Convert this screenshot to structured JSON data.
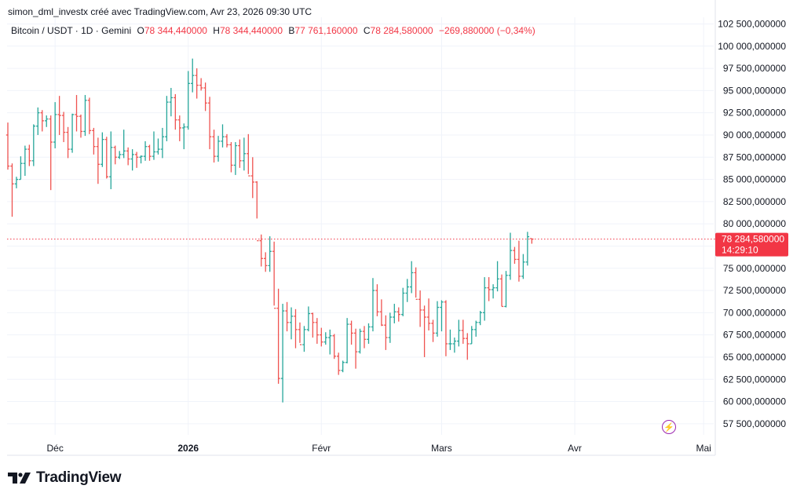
{
  "header": {
    "text": "simon_dml_investx créé avec TradingView.com, Avr 23, 2026 09:30 UTC"
  },
  "legend": {
    "symbol": "Bitcoin / USDT · 1D · Gemini",
    "o_label": "O",
    "o_value": "78 344,440000",
    "h_label": "H",
    "h_value": "78 344,440000",
    "b_label": "B",
    "b_value": "77 761,160000",
    "c_label": "C",
    "c_value": "78 284,580000",
    "change": "−269,880000 (−0,34%)"
  },
  "price_tag": {
    "value": "78 284,580000",
    "countdown": "14:29:10"
  },
  "brand": {
    "logo_text": "TradingView"
  },
  "colors": {
    "up": "#26a69a",
    "down": "#ef5350",
    "last_price": "#f23645",
    "grid": "#f0f3fa"
  },
  "chart_data": {
    "type": "ohlc",
    "title": "",
    "xlabel": "",
    "ylabel": "",
    "ylim": [
      56250,
      103250
    ],
    "y_ticks": [
      57500,
      60000,
      62500,
      65000,
      67500,
      70000,
      72500,
      75000,
      77500,
      80000,
      82500,
      85000,
      87500,
      90000,
      92500,
      95000,
      97500,
      100000,
      102500
    ],
    "y_tick_labels": [
      "57 500,000000",
      "60 000,000000",
      "62 500,000000",
      "65 000,000000",
      "67 500,000000",
      "70 000,000000",
      "72 500,000000",
      "75 000,000000",
      "77 500,000000",
      "80 000,000000",
      "82 500,000000",
      "85 000,000000",
      "87 500,000000",
      "90 000,000000",
      "92 500,000000",
      "95 000,000000",
      "97 500,000000",
      "100 000,000000",
      "102 500,000000"
    ],
    "x_ticks": [
      {
        "label": "Déc",
        "bar": 11,
        "bold": false
      },
      {
        "label": "2026",
        "bar": 42,
        "bold": true
      },
      {
        "label": "Févr",
        "bar": 73,
        "bold": false
      },
      {
        "label": "Mars",
        "bar": 101,
        "bold": false
      },
      {
        "label": "Avr",
        "bar": 132,
        "bold": false
      },
      {
        "label": "Mai",
        "bar": 162,
        "bold": false
      }
    ],
    "first_bar_date": "2025-11-20",
    "last_price": 78284.58,
    "grid": true,
    "bars": [
      [
        90000,
        91400,
        86100,
        86500
      ],
      [
        86500,
        86800,
        80800,
        84500
      ],
      [
        84500,
        85300,
        84000,
        85000
      ],
      [
        85000,
        87600,
        85000,
        86800
      ],
      [
        86800,
        88800,
        85400,
        88400
      ],
      [
        88400,
        88900,
        86500,
        87100
      ],
      [
        87100,
        91200,
        86500,
        91000
      ],
      [
        91000,
        93100,
        90000,
        92500
      ],
      [
        92500,
        92800,
        90400,
        91600
      ],
      [
        91600,
        92200,
        90900,
        91800
      ],
      [
        91800,
        92200,
        83800,
        89200
      ],
      [
        89200,
        93700,
        88500,
        92300
      ],
      [
        92300,
        94400,
        90000,
        92200
      ],
      [
        92200,
        92600,
        89200,
        90300
      ],
      [
        90300,
        90900,
        87400,
        88400
      ],
      [
        88400,
        92400,
        88000,
        92300
      ],
      [
        92300,
        94500,
        90400,
        92100
      ],
      [
        92100,
        92300,
        89700,
        90400
      ],
      [
        90400,
        94500,
        89900,
        93900
      ],
      [
        93900,
        94200,
        90100,
        90500
      ],
      [
        90500,
        90800,
        87800,
        88700
      ],
      [
        88700,
        89700,
        84500,
        86700
      ],
      [
        86700,
        90300,
        86400,
        89500
      ],
      [
        89500,
        89800,
        85100,
        85300
      ],
      [
        85300,
        90400,
        83900,
        88600
      ],
      [
        88600,
        88800,
        86700,
        87500
      ],
      [
        87500,
        88200,
        87300,
        87800
      ],
      [
        87800,
        90600,
        87400,
        88200
      ],
      [
        88200,
        88600,
        86600,
        87300
      ],
      [
        87300,
        88400,
        86000,
        87800
      ],
      [
        87800,
        88100,
        86300,
        87500
      ],
      [
        87500,
        87700,
        86800,
        87600
      ],
      [
        87600,
        89300,
        87100,
        88700
      ],
      [
        88700,
        88900,
        87100,
        87600
      ],
      [
        87600,
        90400,
        87200,
        88100
      ],
      [
        88100,
        89600,
        87800,
        88400
      ],
      [
        88400,
        90800,
        87400,
        89800
      ],
      [
        89800,
        94400,
        89300,
        93700
      ],
      [
        93700,
        95300,
        92100,
        94200
      ],
      [
        94200,
        94600,
        90600,
        91700
      ],
      [
        91700,
        92200,
        89300,
        90800
      ],
      [
        90800,
        91300,
        88400,
        90900
      ],
      [
        90900,
        97200,
        90600,
        95800
      ],
      [
        95800,
        98600,
        94800,
        96700
      ],
      [
        96700,
        97500,
        94100,
        95600
      ],
      [
        95600,
        96400,
        95000,
        95300
      ],
      [
        95300,
        95900,
        92700,
        93600
      ],
      [
        93600,
        94300,
        88400,
        89800
      ],
      [
        89800,
        90600,
        86900,
        87600
      ],
      [
        87600,
        89900,
        87000,
        89300
      ],
      [
        89300,
        91200,
        88600,
        89800
      ],
      [
        89800,
        90100,
        88600,
        88900
      ],
      [
        88900,
        89200,
        85800,
        86600
      ],
      [
        86600,
        89200,
        85500,
        88800
      ],
      [
        88800,
        89500,
        86300,
        87100
      ],
      [
        87100,
        89700,
        86000,
        87900
      ],
      [
        87900,
        90100,
        85600,
        85400
      ],
      [
        85400,
        87500,
        82900,
        84700
      ],
      [
        84700,
        84800,
        80600,
        78100
      ],
      [
        78100,
        78800,
        75200,
        76100
      ],
      [
        76100,
        76800,
        74600,
        75300
      ],
      [
        75300,
        78600,
        74600,
        76900
      ],
      [
        76900,
        78000,
        70800,
        70500
      ],
      [
        70500,
        72700,
        62000,
        62600
      ],
      [
        62600,
        71000,
        59900,
        70200
      ],
      [
        70200,
        71200,
        67900,
        68900
      ],
      [
        68900,
        70600,
        67000,
        69600
      ],
      [
        69600,
        70400,
        66000,
        68100
      ],
      [
        68100,
        68900,
        66600,
        66400
      ],
      [
        66400,
        68500,
        65600,
        68100
      ],
      [
        68100,
        70700,
        67900,
        69900
      ],
      [
        69900,
        70000,
        67200,
        68900
      ],
      [
        68900,
        69400,
        66500,
        67500
      ],
      [
        67500,
        68300,
        66200,
        66700
      ],
      [
        66700,
        67800,
        66400,
        67200
      ],
      [
        67200,
        68100,
        65300,
        67400
      ],
      [
        67400,
        67600,
        64800,
        65100
      ],
      [
        65100,
        65500,
        63000,
        63500
      ],
      [
        63500,
        64600,
        63300,
        64400
      ],
      [
        64400,
        69400,
        64300,
        68700
      ],
      [
        68700,
        69100,
        66400,
        67700
      ],
      [
        67700,
        68200,
        63700,
        65600
      ],
      [
        65600,
        68200,
        65400,
        67900
      ],
      [
        67900,
        68500,
        66000,
        67000
      ],
      [
        67000,
        68800,
        66500,
        68400
      ],
      [
        68400,
        73900,
        67900,
        72500
      ],
      [
        72500,
        73200,
        69600,
        70100
      ],
      [
        70100,
        71500,
        68500,
        68600
      ],
      [
        68600,
        69700,
        65800,
        67200
      ],
      [
        67200,
        70000,
        66600,
        69500
      ],
      [
        69500,
        71000,
        68800,
        70100
      ],
      [
        70100,
        70600,
        69000,
        69800
      ],
      [
        69800,
        72800,
        69600,
        72200
      ],
      [
        72200,
        73800,
        71200,
        72900
      ],
      [
        72900,
        75800,
        72200,
        74500
      ],
      [
        74500,
        75100,
        71700,
        71500
      ],
      [
        71500,
        72500,
        68400,
        70300
      ],
      [
        70300,
        70800,
        65000,
        69500
      ],
      [
        69500,
        71600,
        68000,
        68800
      ],
      [
        68800,
        69200,
        66700,
        67700
      ],
      [
        67700,
        71300,
        67300,
        70600
      ],
      [
        70600,
        71400,
        67900,
        71200
      ],
      [
        71200,
        71400,
        65100,
        66500
      ],
      [
        66500,
        68100,
        65800,
        66500
      ],
      [
        66500,
        67200,
        65500,
        66800
      ],
      [
        66800,
        69200,
        66200,
        68000
      ],
      [
        68000,
        69200,
        66500,
        67100
      ],
      [
        67100,
        67700,
        64700,
        66500
      ],
      [
        66500,
        68500,
        66500,
        68100
      ],
      [
        68100,
        69100,
        67300,
        68900
      ],
      [
        68900,
        70200,
        68600,
        70000
      ],
      [
        70000,
        74000,
        69100,
        72800
      ],
      [
        72800,
        74000,
        71300,
        72600
      ],
      [
        72600,
        73200,
        71600,
        72800
      ],
      [
        72800,
        75800,
        72400,
        73800
      ],
      [
        73800,
        74300,
        70700,
        70700
      ],
      [
        70700,
        74700,
        70600,
        74200
      ],
      [
        74200,
        79000,
        73700,
        77000
      ],
      [
        77000,
        77400,
        75500,
        76000
      ],
      [
        76000,
        78100,
        73500,
        74100
      ],
      [
        74100,
        76600,
        73800,
        75700
      ],
      [
        75700,
        79100,
        75300,
        78550
      ],
      [
        78344.44,
        78344.44,
        77761.16,
        78284.58
      ]
    ]
  }
}
